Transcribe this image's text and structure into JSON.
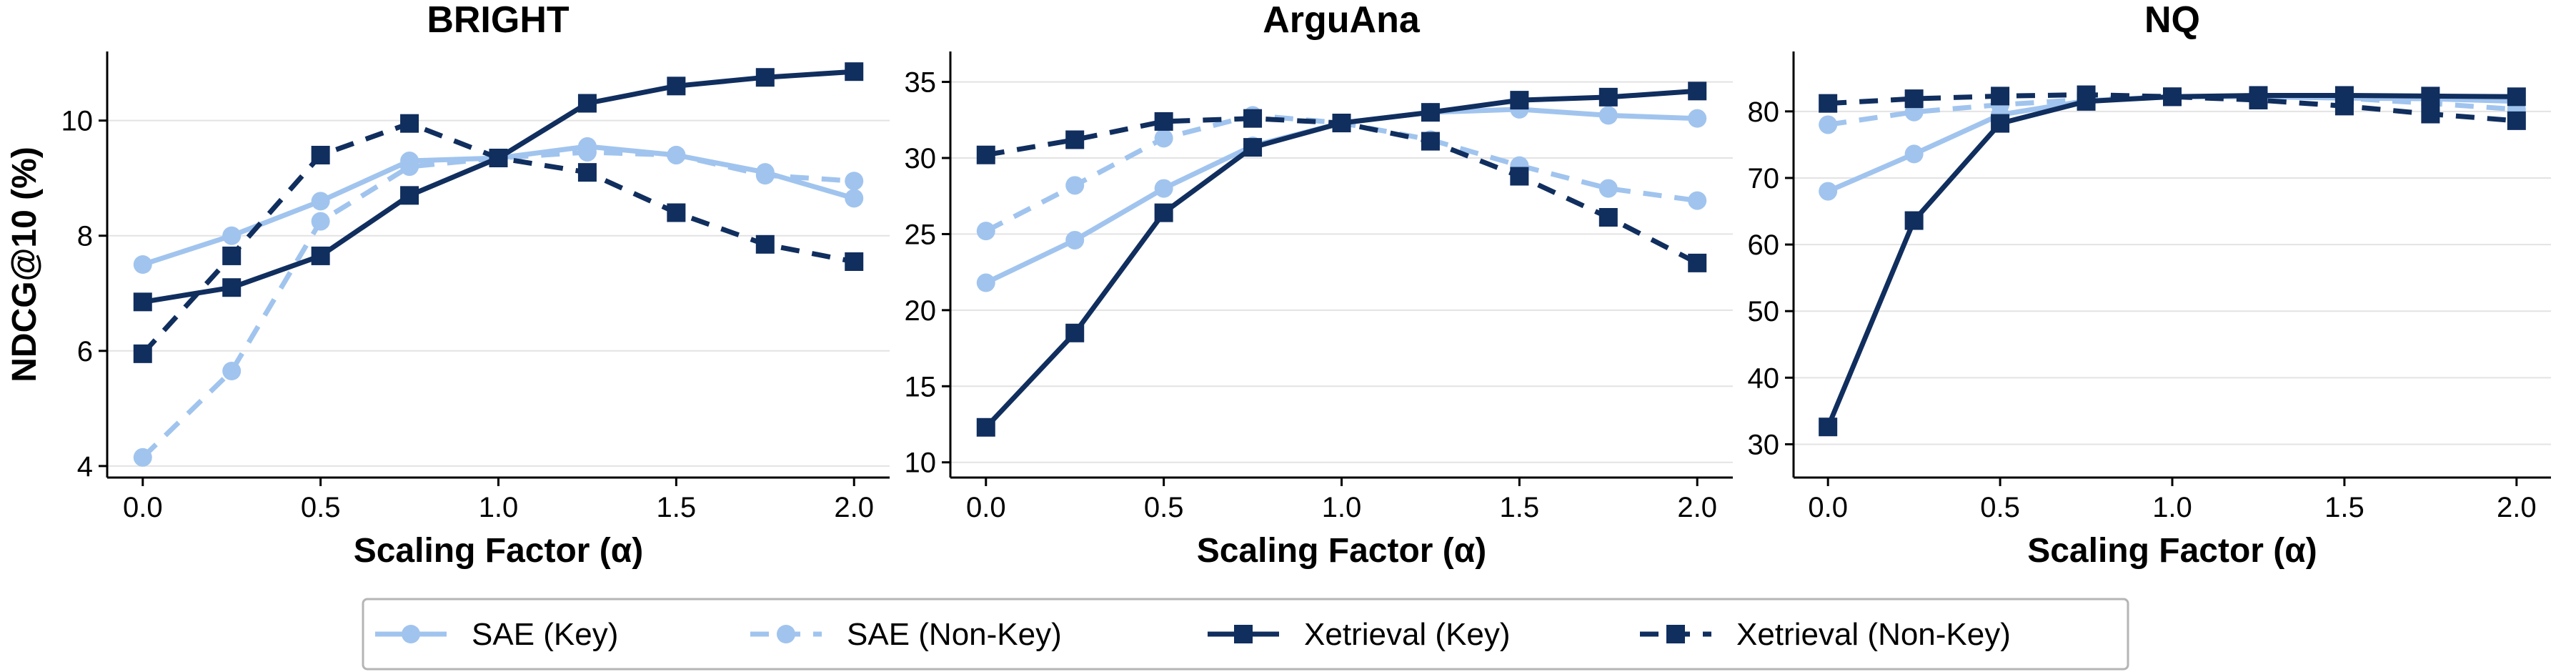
{
  "chart_data": [
    {
      "type": "line",
      "title": "BRIGHT",
      "xlabel": "Scaling Factor (α)",
      "ylabel": "NDCG@10 (%)",
      "x": [
        0.0,
        0.25,
        0.5,
        0.75,
        1.0,
        1.25,
        1.5,
        1.75,
        2.0
      ],
      "xticks": [
        "0.0",
        "0.5",
        "1.0",
        "1.5",
        "2.0"
      ],
      "xlim": [
        -0.1,
        2.1
      ],
      "ylim": [
        3.8,
        11.2
      ],
      "yticks": [
        "4",
        "6",
        "8",
        "10"
      ],
      "grid": "horizontal",
      "series": [
        {
          "name": "SAE (Key)",
          "values": [
            7.5,
            8.0,
            8.6,
            9.3,
            9.35,
            9.55,
            9.4,
            9.1,
            8.65
          ]
        },
        {
          "name": "SAE (Non-Key)",
          "values": [
            4.15,
            5.65,
            8.25,
            9.2,
            9.35,
            9.45,
            9.4,
            9.05,
            8.95
          ]
        },
        {
          "name": "Xetrieval (Key)",
          "values": [
            6.85,
            7.1,
            7.65,
            8.7,
            9.35,
            10.3,
            10.6,
            10.75,
            10.85
          ]
        },
        {
          "name": "Xetrieval (Non-Key)",
          "values": [
            5.95,
            7.65,
            9.4,
            9.95,
            9.35,
            9.1,
            8.4,
            7.85,
            7.55
          ]
        }
      ]
    },
    {
      "type": "line",
      "title": "ArguAna",
      "xlabel": "Scaling Factor (α)",
      "ylabel": "",
      "x": [
        0.0,
        0.25,
        0.5,
        0.75,
        1.0,
        1.25,
        1.5,
        1.75,
        2.0
      ],
      "xticks": [
        "0.0",
        "0.5",
        "1.0",
        "1.5",
        "2.0"
      ],
      "xlim": [
        -0.1,
        2.1
      ],
      "ylim": [
        9.0,
        37.0
      ],
      "yticks": [
        "10",
        "15",
        "20",
        "25",
        "30",
        "35"
      ],
      "grid": "horizontal",
      "series": [
        {
          "name": "SAE (Key)",
          "values": [
            21.8,
            24.6,
            28.0,
            30.8,
            32.3,
            33.0,
            33.2,
            32.8,
            32.6
          ]
        },
        {
          "name": "SAE (Non-Key)",
          "values": [
            25.2,
            28.2,
            31.3,
            32.8,
            32.3,
            31.2,
            29.5,
            28.0,
            27.2
          ]
        },
        {
          "name": "Xetrieval (Key)",
          "values": [
            12.3,
            18.5,
            26.4,
            30.7,
            32.3,
            33.0,
            33.8,
            34.0,
            34.4
          ]
        },
        {
          "name": "Xetrieval (Non-Key)",
          "values": [
            30.2,
            31.2,
            32.4,
            32.6,
            32.3,
            31.1,
            28.8,
            26.1,
            23.1
          ]
        }
      ]
    },
    {
      "type": "line",
      "title": "NQ",
      "xlabel": "Scaling Factor (α)",
      "ylabel": "",
      "x": [
        0.0,
        0.25,
        0.5,
        0.75,
        1.0,
        1.25,
        1.5,
        1.75,
        2.0
      ],
      "xticks": [
        "0.0",
        "0.5",
        "1.0",
        "1.5",
        "2.0"
      ],
      "xlim": [
        -0.1,
        2.1
      ],
      "ylim": [
        25.0,
        89.0
      ],
      "yticks": [
        "30",
        "40",
        "50",
        "60",
        "70",
        "80"
      ],
      "grid": "horizontal",
      "series": [
        {
          "name": "SAE (Key)",
          "values": [
            68.0,
            73.6,
            79.5,
            81.6,
            82.2,
            82.2,
            82.0,
            81.9,
            81.5
          ]
        },
        {
          "name": "SAE (Non-Key)",
          "values": [
            78.0,
            79.9,
            81.0,
            81.8,
            82.2,
            82.3,
            82.0,
            81.2,
            80.3
          ]
        },
        {
          "name": "Xetrieval (Key)",
          "values": [
            32.6,
            63.6,
            78.2,
            81.5,
            82.2,
            82.4,
            82.4,
            82.3,
            82.2
          ]
        },
        {
          "name": "Xetrieval (Non-Key)",
          "values": [
            81.2,
            81.9,
            82.3,
            82.5,
            82.2,
            81.7,
            80.8,
            79.6,
            78.6
          ]
        }
      ]
    }
  ],
  "legend": {
    "position": "bottom-center",
    "entries": [
      {
        "label": "SAE (Key)",
        "color": "#a0c4ee",
        "dash": false,
        "marker": "circle"
      },
      {
        "label": "SAE (Non-Key)",
        "color": "#a0c4ee",
        "dash": true,
        "marker": "circle"
      },
      {
        "label": "Xetrieval (Key)",
        "color": "#102e5e",
        "dash": false,
        "marker": "square"
      },
      {
        "label": "Xetrieval (Non-Key)",
        "color": "#102e5e",
        "dash": true,
        "marker": "square"
      }
    ]
  },
  "colors": {
    "sae": "#a0c4ee",
    "xetrieval": "#102e5e",
    "grid": "#e3e3e3",
    "axis": "#000000"
  }
}
